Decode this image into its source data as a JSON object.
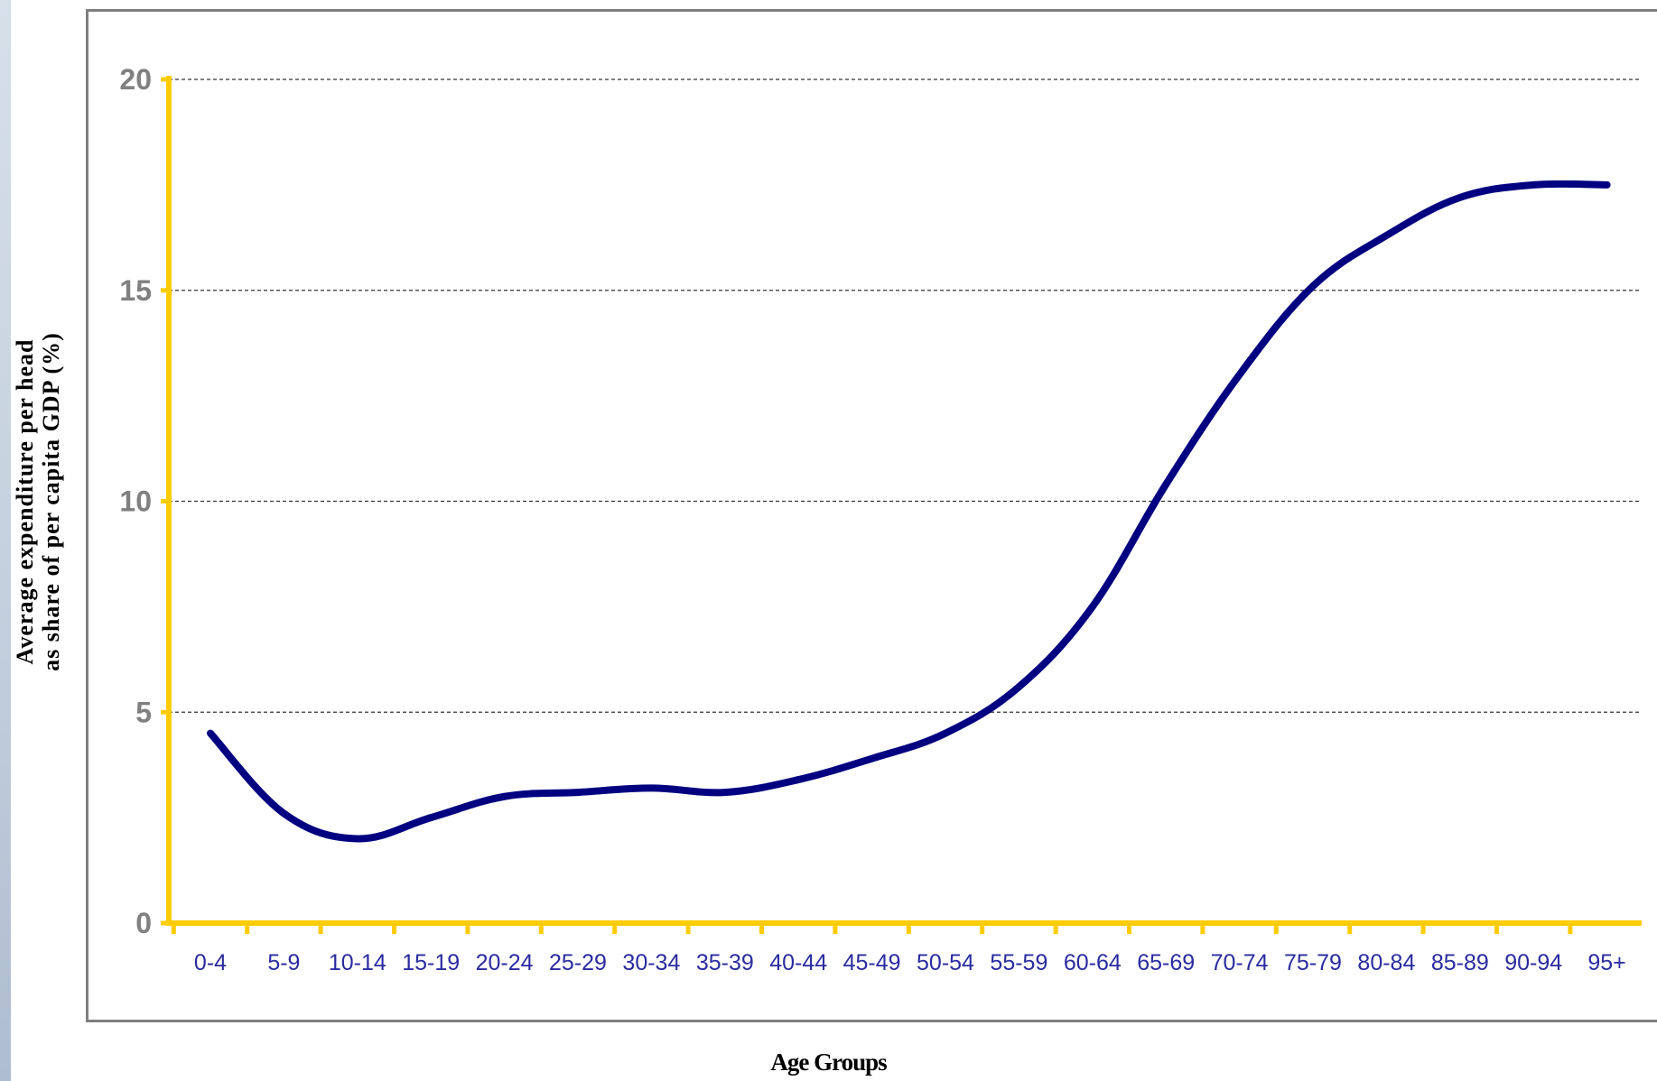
{
  "colors": {
    "line": "#000080",
    "axis": "#ffcc00",
    "grid": "#333333",
    "y_tick_text": "#808080",
    "x_tick_text": "#2b2ba0",
    "frame": "#7f7f7f"
  },
  "chart_data": {
    "type": "line",
    "title": "",
    "xlabel": "Age Groups",
    "ylabel": "Average expenditure per head\nas share of per capita GDP (%)",
    "categories": [
      "0-4",
      "5-9",
      "10-14",
      "15-19",
      "20-24",
      "25-29",
      "30-34",
      "35-39",
      "40-44",
      "45-49",
      "50-54",
      "55-59",
      "60-64",
      "65-69",
      "70-74",
      "75-79",
      "80-84",
      "85-89",
      "90-94",
      "95+"
    ],
    "series": [
      {
        "values": [
          4.5,
          2.6,
          2.0,
          2.5,
          3.0,
          3.1,
          3.2,
          3.1,
          3.4,
          3.9,
          4.5,
          5.6,
          7.5,
          10.4,
          13.0,
          15.1,
          16.3,
          17.2,
          17.5,
          17.5
        ]
      }
    ],
    "ylim": [
      0,
      20
    ],
    "yticks": [
      0,
      5,
      10,
      15,
      20
    ],
    "grid": "horizontal dashed",
    "legend": "none"
  }
}
